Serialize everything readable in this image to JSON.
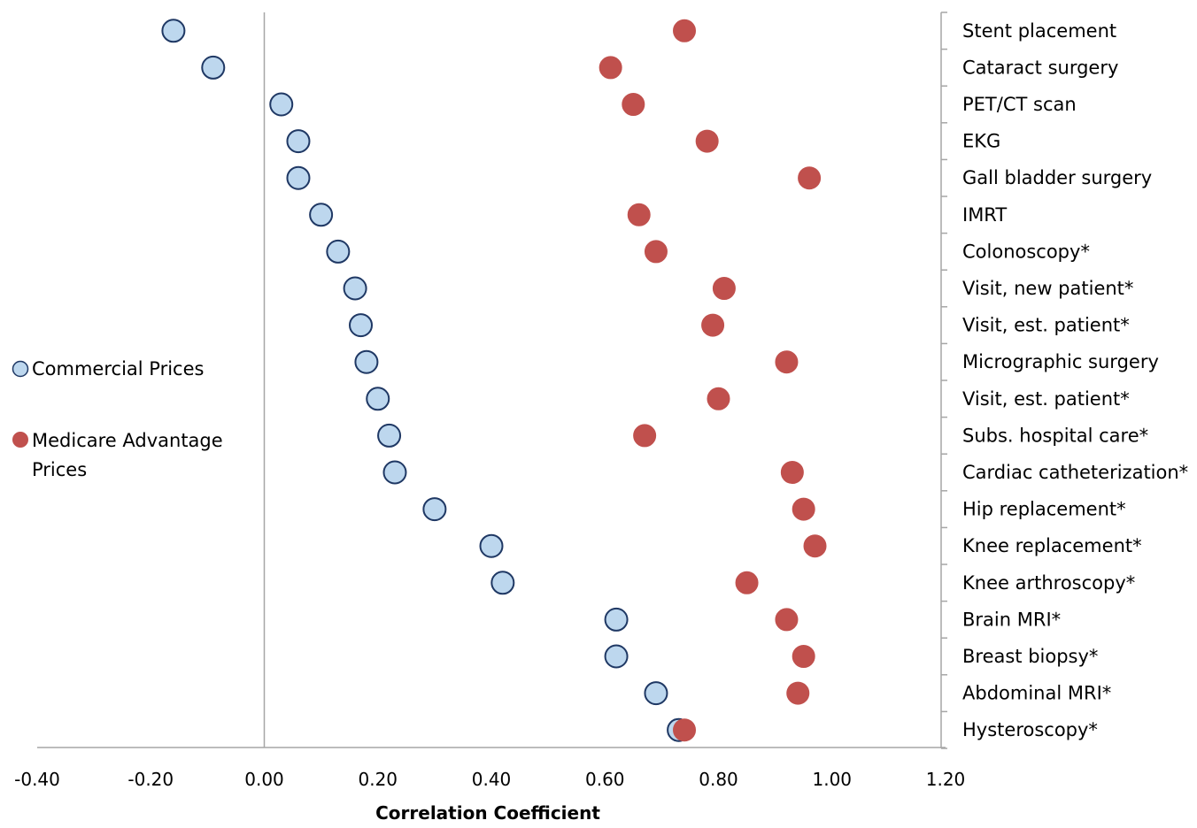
{
  "chart_data": {
    "type": "scatter",
    "title": "",
    "xlabel": "Correlation Coefficient",
    "ylabel": "",
    "xlim": [
      -0.4,
      1.2
    ],
    "xticks": [
      "-0.40",
      "-0.20",
      "0.00",
      "0.20",
      "0.40",
      "0.60",
      "0.80",
      "1.00",
      "1.20"
    ],
    "tick_values": [
      -0.4,
      -0.2,
      0.0,
      0.2,
      0.4,
      0.6,
      0.8,
      1.0,
      1.2
    ],
    "categories": [
      "Stent placement",
      "Cataract surgery",
      "PET/CT scan",
      "EKG",
      "Gall bladder surgery",
      "IMRT",
      "Colonoscopy*",
      "Visit, new patient*",
      "Visit, est. patient*",
      "Micrographic surgery",
      "Visit, est. patient*",
      "Subs. hospital care*",
      "Cardiac catheterization*",
      "Hip replacement*",
      "Knee replacement*",
      "Knee arthroscopy*",
      "Brain MRI*",
      "Breast biopsy*",
      "Abdominal MRI*",
      "Hysteroscopy*"
    ],
    "series": [
      {
        "name": "Commercial Prices",
        "color": "#bdd7ee",
        "stroke": "#1f3864",
        "values": [
          -0.16,
          -0.09,
          0.03,
          0.06,
          0.06,
          0.1,
          0.13,
          0.16,
          0.17,
          0.18,
          0.2,
          0.22,
          0.23,
          0.3,
          0.4,
          0.42,
          0.62,
          0.62,
          0.69,
          0.73
        ]
      },
      {
        "name": "Medicare Advantage Prices",
        "color": "#c0504d",
        "stroke": "#c0504d",
        "values": [
          0.74,
          0.61,
          0.65,
          0.78,
          0.96,
          0.66,
          0.69,
          0.81,
          0.79,
          0.92,
          0.8,
          0.67,
          0.93,
          0.95,
          0.97,
          0.85,
          0.92,
          0.95,
          0.94,
          0.74
        ]
      }
    ],
    "legend": {
      "position": "left",
      "items": [
        {
          "label": "Commercial Prices",
          "color": "#bdd7ee",
          "stroke": "#1f3864"
        },
        {
          "label_lines": [
            "Medicare Advantage",
            "Prices"
          ],
          "color": "#c0504d",
          "stroke": "#c0504d"
        }
      ]
    },
    "grid": false
  }
}
